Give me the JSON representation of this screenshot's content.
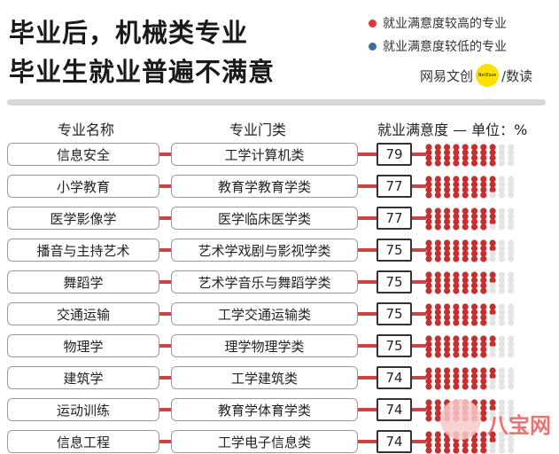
{
  "title": {
    "line1": "毕业后，机械类专业",
    "line2": "毕业生就业普遍不满意"
  },
  "legend": {
    "high_label": "就业满意度较高的专业",
    "low_label": "就业满意度较低的专业",
    "high_color": "#d63a3a",
    "low_color": "#3e6e9c"
  },
  "brand": {
    "left": "网易文创",
    "logo_text": "NetEase",
    "right": "/数读"
  },
  "watermark": {
    "text": "八宝网"
  },
  "colors": {
    "filled_dot": "#c62f2f",
    "empty_dot": "#e4e4e4",
    "connector": "#c94545"
  },
  "chart_data": {
    "type": "table",
    "columns": [
      "专业名称",
      "专业门类",
      "就业满意度 — 单位：%"
    ],
    "rows": [
      {
        "major": "信息安全",
        "category": "工学计算机类",
        "value": 79
      },
      {
        "major": "小学教育",
        "category": "教育学教育学类",
        "value": 77
      },
      {
        "major": "医学影像学",
        "category": "医学临床医学类",
        "value": 77
      },
      {
        "major": "播音与主持艺术",
        "category": "艺术学戏剧与影视学类",
        "value": 75
      },
      {
        "major": "舞蹈学",
        "category": "艺术学音乐与舞蹈学类",
        "value": 75
      },
      {
        "major": "交通运输",
        "category": "工学交通运输类",
        "value": 75
      },
      {
        "major": "物理学",
        "category": "理学物理学类",
        "value": 75
      },
      {
        "major": "建筑学",
        "category": "工学建筑类",
        "value": 74
      },
      {
        "major": "运动训练",
        "category": "教育学体育学类",
        "value": 74
      },
      {
        "major": "信息工程",
        "category": "工学电子信息类",
        "value": 74
      }
    ],
    "dot_scale_max": 100,
    "series": [
      {
        "color": "#d63a3a"
      }
    ]
  }
}
